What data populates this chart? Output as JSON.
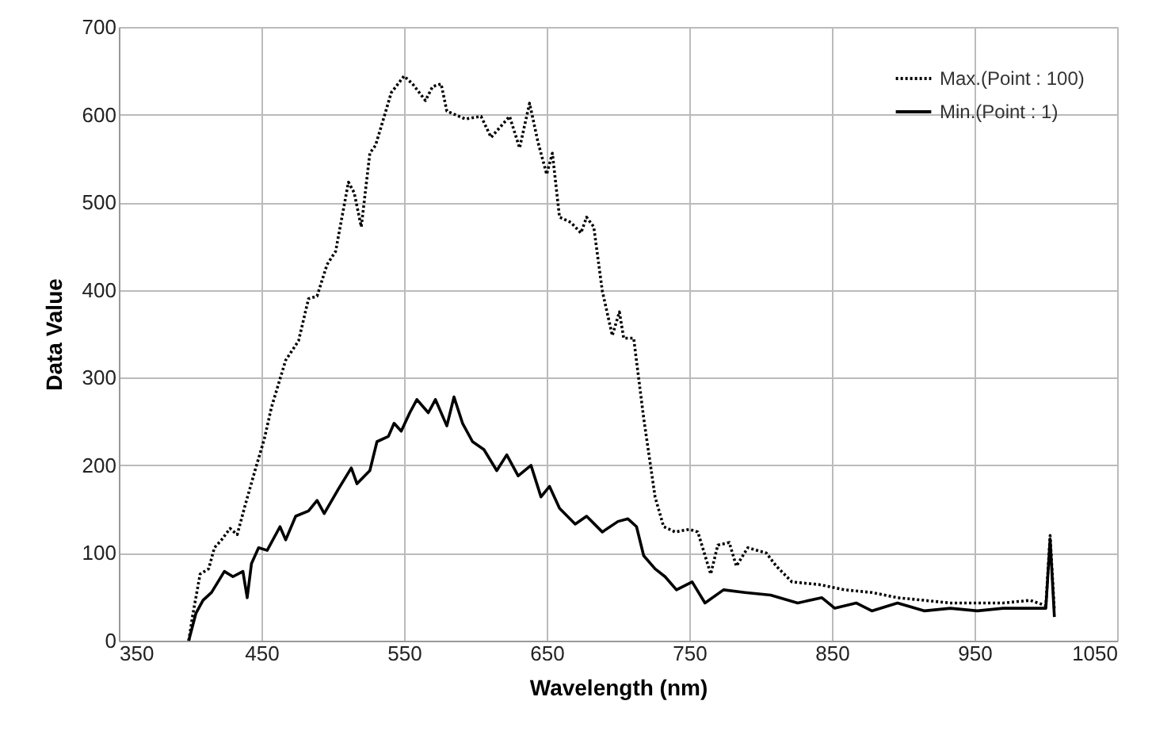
{
  "chart_data": {
    "type": "line",
    "xlabel": "Wavelength (nm)",
    "ylabel": "Data Value",
    "xlim": [
      350,
      1050
    ],
    "xticks": [
      350,
      450,
      550,
      650,
      750,
      850,
      950,
      1050
    ],
    "ylim": [
      0,
      700
    ],
    "yticks": [
      0,
      100,
      200,
      300,
      400,
      500,
      600,
      700
    ],
    "grid": true,
    "legend": "top right",
    "marker": "none",
    "series": [
      {
        "name": "Max.(Point : 100)",
        "color": "#000000",
        "line_style": "dotted",
        "x": [
          399,
          402,
          407,
          413,
          417,
          422,
          428,
          433,
          439,
          446,
          452,
          457,
          467,
          476,
          483,
          489,
          496,
          502,
          511,
          515,
          520,
          526,
          530,
          535,
          541,
          550,
          556,
          565,
          570,
          576,
          580,
          593,
          604,
          611,
          624,
          631,
          638,
          644,
          650,
          654,
          659,
          667,
          674,
          678,
          683,
          689,
          696,
          701,
          704,
          711,
          718,
          726,
          732,
          740,
          750,
          756,
          765,
          770,
          778,
          783,
          791,
          804,
          811,
          822,
          841,
          859,
          878,
          896,
          915,
          933,
          952,
          970,
          989,
          1000,
          1003,
          1006
        ],
        "values": [
          0,
          31,
          76,
          82,
          106,
          115,
          128,
          121,
          157,
          197,
          230,
          266,
          320,
          342,
          390,
          393,
          429,
          444,
          523,
          511,
          472,
          556,
          565,
          592,
          625,
          644,
          635,
          616,
          632,
          635,
          604,
          595,
          598,
          574,
          598,
          562,
          613,
          568,
          532,
          556,
          483,
          477,
          465,
          483,
          472,
          399,
          348,
          375,
          345,
          345,
          254,
          164,
          130,
          124,
          127,
          124,
          76,
          109,
          112,
          85,
          106,
          100,
          85,
          67,
          64,
          58,
          55,
          49,
          46,
          43,
          43,
          43,
          46,
          40,
          120,
          34
        ]
      },
      {
        "name": "Min.(Point : 1)",
        "color": "#000000",
        "line_style": "solid",
        "x": [
          399,
          404,
          409,
          415,
          424,
          430,
          437,
          440,
          443,
          448,
          454,
          463,
          467,
          474,
          483,
          489,
          494,
          504,
          513,
          517,
          526,
          531,
          539,
          543,
          548,
          554,
          559,
          567,
          572,
          580,
          585,
          591,
          598,
          606,
          615,
          622,
          630,
          639,
          646,
          652,
          659,
          670,
          678,
          689,
          700,
          707,
          713,
          718,
          726,
          733,
          741,
          752,
          761,
          774,
          789,
          807,
          826,
          843,
          852,
          867,
          878,
          896,
          915,
          933,
          952,
          970,
          989,
          1000,
          1003,
          1006
        ],
        "values": [
          0,
          31,
          46,
          55,
          79,
          73,
          79,
          49,
          88,
          106,
          103,
          130,
          115,
          142,
          148,
          160,
          145,
          173,
          197,
          179,
          194,
          227,
          233,
          248,
          239,
          260,
          275,
          260,
          275,
          245,
          278,
          248,
          227,
          218,
          194,
          212,
          188,
          200,
          164,
          176,
          151,
          133,
          142,
          124,
          136,
          139,
          130,
          97,
          82,
          73,
          58,
          67,
          43,
          58,
          55,
          52,
          43,
          49,
          37,
          43,
          34,
          43,
          34,
          37,
          34,
          37,
          37,
          37,
          116,
          27
        ]
      }
    ]
  }
}
